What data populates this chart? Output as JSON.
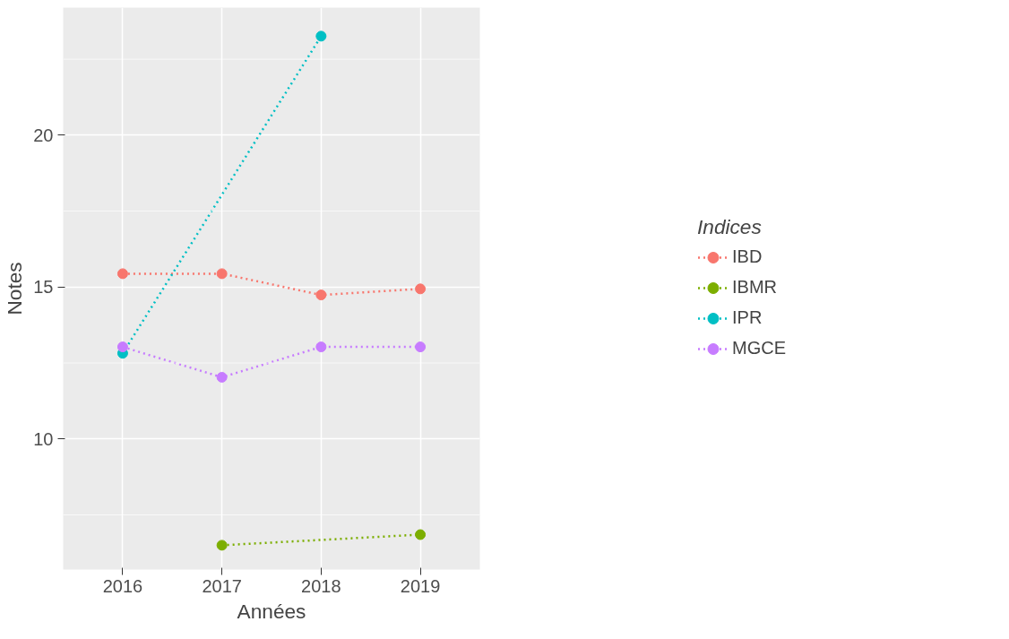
{
  "chart_data": {
    "type": "line",
    "xlabel": "Années",
    "ylabel": "Notes",
    "legend_title": "Indices",
    "xlim": [
      2015.4,
      2019.6
    ],
    "xticks": [
      2016,
      2017,
      2018,
      2019
    ],
    "ylim": [
      5.7,
      24.2
    ],
    "yticks": [
      10,
      15,
      20
    ],
    "grid": true,
    "legend": "right",
    "marker": "circle",
    "line_style": "dotted",
    "series": [
      {
        "name": "IBD",
        "color": "#f8766d",
        "x": [
          2016,
          2017,
          2018,
          2019
        ],
        "values": [
          15.44,
          15.44,
          14.74,
          14.94
        ]
      },
      {
        "name": "IBMR",
        "color": "#7cae00",
        "x": [
          2017,
          2019
        ],
        "values": [
          6.5,
          6.85
        ]
      },
      {
        "name": "IPR",
        "color": "#00bfc4",
        "x": [
          2016,
          2018
        ],
        "values": [
          12.82,
          23.26
        ]
      },
      {
        "name": "MGCE",
        "color": "#c77cff",
        "x": [
          2016,
          2017,
          2018,
          2019
        ],
        "values": [
          13.03,
          12.03,
          13.03,
          13.03
        ]
      }
    ]
  }
}
